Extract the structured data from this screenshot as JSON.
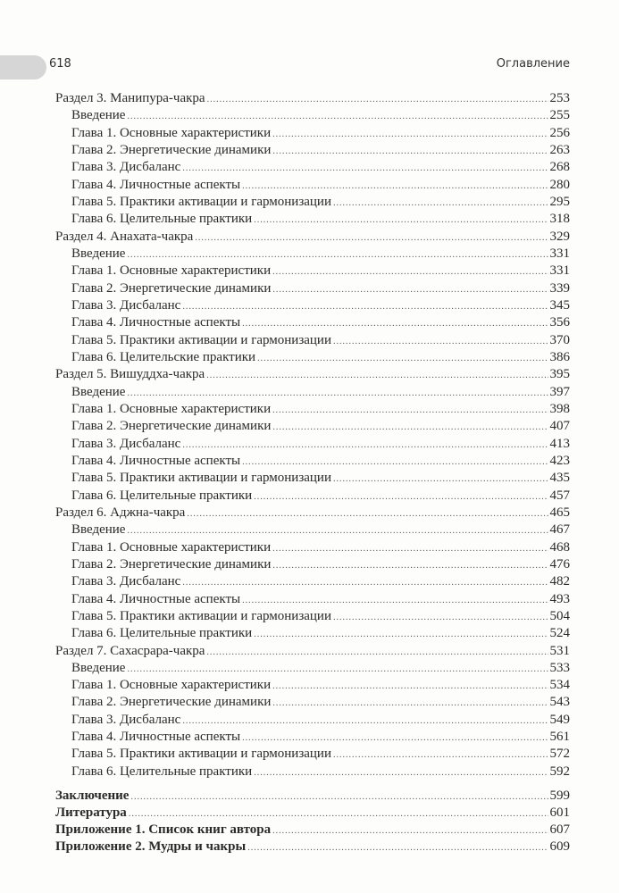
{
  "header": {
    "page_number": "618",
    "running_title": "Оглавление"
  },
  "toc": [
    {
      "type": "section",
      "label": "Раздел 3. Манипура-чакра",
      "page": "253"
    },
    {
      "type": "chapter",
      "label": "Введение",
      "page": "255"
    },
    {
      "type": "chapter",
      "label": "Глава 1. Основные характеристики",
      "page": "256"
    },
    {
      "type": "chapter",
      "label": "Глава 2. Энергетические динамики",
      "page": "263"
    },
    {
      "type": "chapter",
      "label": "Глава 3. Дисбаланс",
      "page": "268"
    },
    {
      "type": "chapter",
      "label": "Глава 4. Личностные аспекты",
      "page": "280"
    },
    {
      "type": "chapter",
      "label": "Глава 5. Практики активации и гармонизации",
      "page": "295"
    },
    {
      "type": "chapter",
      "label": "Глава 6. Целительные практики",
      "page": "318"
    },
    {
      "type": "section",
      "label": "Раздел 4. Анахата-чакра",
      "page": "329"
    },
    {
      "type": "chapter",
      "label": "Введение",
      "page": "331"
    },
    {
      "type": "chapter",
      "label": "Глава 1. Основные характеристики",
      "page": "331"
    },
    {
      "type": "chapter",
      "label": "Глава 2. Энергетические динамики",
      "page": "339"
    },
    {
      "type": "chapter",
      "label": "Глава 3. Дисбаланс",
      "page": "345"
    },
    {
      "type": "chapter",
      "label": "Глава 4. Личностные аспекты",
      "page": "356"
    },
    {
      "type": "chapter",
      "label": "Глава 5. Практики активации и гармонизации",
      "page": "370"
    },
    {
      "type": "chapter",
      "label": "Глава 6. Целительские практики",
      "page": "386"
    },
    {
      "type": "section",
      "label": "Раздел 5. Вишуддха-чакра",
      "page": "395"
    },
    {
      "type": "chapter",
      "label": "Введение",
      "page": "397"
    },
    {
      "type": "chapter",
      "label": "Глава 1. Основные характеристики",
      "page": "398"
    },
    {
      "type": "chapter",
      "label": "Глава 2. Энергетические динамики",
      "page": "407"
    },
    {
      "type": "chapter",
      "label": "Глава 3. Дисбаланс",
      "page": "413"
    },
    {
      "type": "chapter",
      "label": "Глава 4. Личностные аспекты",
      "page": "423"
    },
    {
      "type": "chapter",
      "label": "Глава 5. Практики активации и гармонизации",
      "page": "435"
    },
    {
      "type": "chapter",
      "label": "Глава 6. Целительные практики",
      "page": "457"
    },
    {
      "type": "section",
      "label": "Раздел 6. Аджна-чакра",
      "page": "465"
    },
    {
      "type": "chapter",
      "label": "Введение",
      "page": "467"
    },
    {
      "type": "chapter",
      "label": "Глава 1. Основные характеристики",
      "page": "468"
    },
    {
      "type": "chapter",
      "label": "Глава 2. Энергетические динамики",
      "page": "476"
    },
    {
      "type": "chapter",
      "label": "Глава 3. Дисбаланс",
      "page": "482"
    },
    {
      "type": "chapter",
      "label": "Глава 4. Личностные аспекты",
      "page": "493"
    },
    {
      "type": "chapter",
      "label": "Глава 5. Практики активации и гармонизации",
      "page": "504"
    },
    {
      "type": "chapter",
      "label": "Глава 6. Целительные практики",
      "page": "524"
    },
    {
      "type": "section",
      "label": "Раздел 7. Сахасрара-чакра",
      "page": "531"
    },
    {
      "type": "chapter",
      "label": "Введение",
      "page": "533"
    },
    {
      "type": "chapter",
      "label": "Глава 1. Основные характеристики",
      "page": "534"
    },
    {
      "type": "chapter",
      "label": "Глава 2. Энергетические динамики",
      "page": "543"
    },
    {
      "type": "chapter",
      "label": "Глава 3. Дисбаланс",
      "page": "549"
    },
    {
      "type": "chapter",
      "label": "Глава 4. Личностные аспекты",
      "page": "561"
    },
    {
      "type": "chapter",
      "label": "Глава 5. Практики активации и гармонизации",
      "page": "572"
    },
    {
      "type": "chapter",
      "label": "Глава 6. Целительные практики",
      "page": "592"
    },
    {
      "type": "bold",
      "label": "Заключение",
      "page": "599"
    },
    {
      "type": "bold",
      "label": "Литература",
      "page": "601"
    },
    {
      "type": "bold",
      "label": "Приложение 1. Список книг автора",
      "page": "607"
    },
    {
      "type": "bold",
      "label": "Приложение 2. Мудры и чакры",
      "page": "609"
    }
  ]
}
